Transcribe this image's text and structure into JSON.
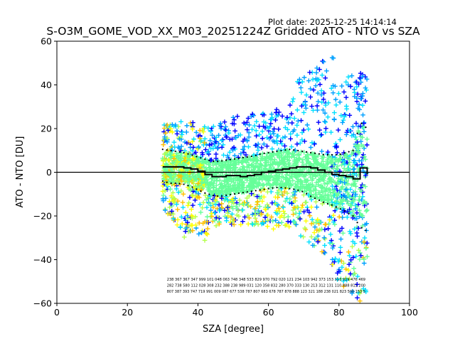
{
  "chart_data": {
    "type": "scatter",
    "title": "S-O3M_GOME_VOD_XX_M03_20251224Z Gridded ATO - NTO vs SZA",
    "plot_date_label": "Plot date: 2025-12-25 14:14:14",
    "xlabel": "SZA [degree]",
    "ylabel": "ATO - NTO [DU]",
    "xlim": [
      0,
      100
    ],
    "ylim": [
      -60,
      60
    ],
    "x_ticks": [
      0,
      20,
      40,
      60,
      80,
      100
    ],
    "y_ticks": [
      -60,
      -40,
      -20,
      0,
      20,
      40,
      60
    ],
    "zero_line": 0,
    "sza_range": [
      30,
      88
    ],
    "marker": "+",
    "colormap": [
      "#0000ff",
      "#00a0ff",
      "#00e0ff",
      "#66ff99",
      "#b4ff4c",
      "#ffff00",
      "#ffc000"
    ],
    "bin_centers": [
      30,
      32,
      34,
      36,
      38,
      40,
      42,
      44,
      46,
      48,
      50,
      52,
      54,
      56,
      58,
      60,
      62,
      64,
      66,
      68,
      70,
      72,
      74,
      76,
      78,
      80,
      82,
      84,
      86,
      88
    ],
    "median_line": [
      2.5,
      2.5,
      2.5,
      2,
      1.5,
      0.5,
      -1,
      -2,
      -2,
      -1.5,
      -1.5,
      -2,
      -1.5,
      -1,
      0,
      0.5,
      1,
      1.5,
      2,
      2.5,
      2.5,
      2,
      1,
      0,
      -1,
      -1.5,
      -2,
      -3,
      2,
      -1
    ],
    "upper_sd_line": [
      10.5,
      10,
      9.5,
      9,
      8,
      7,
      6,
      5,
      5,
      5.5,
      6,
      6.5,
      7,
      7.5,
      8.5,
      9,
      9.5,
      10,
      10.5,
      10,
      9.5,
      9,
      8.5,
      8,
      8,
      8,
      9,
      10,
      23,
      20
    ],
    "lower_sd_line": [
      -4,
      -5,
      -5,
      -5.5,
      -6.5,
      -8,
      -9.5,
      -10.5,
      -11,
      -10.5,
      -10,
      -9.5,
      -9,
      -8.5,
      -8,
      -7.5,
      -7,
      -7,
      -7.5,
      -8,
      -9,
      -11,
      -12.5,
      -14,
      -15,
      -16.5,
      -18,
      -20,
      -25,
      -27
    ],
    "upper_envelope": [
      22,
      22,
      24,
      24,
      24,
      22,
      21,
      21,
      22,
      25,
      26,
      26,
      27,
      27,
      28,
      28,
      29,
      30,
      40,
      42,
      46,
      48,
      50,
      52,
      54,
      54,
      50,
      45,
      46,
      46
    ],
    "lower_envelope": [
      -18,
      -20,
      -24,
      -30,
      -28,
      -28,
      -32,
      -26,
      -24,
      -24,
      -24,
      -24,
      -25,
      -24,
      -24,
      -26,
      -26,
      -24,
      -26,
      -28,
      -32,
      -34,
      -36,
      -38,
      -42,
      -52,
      -55,
      -58,
      -60,
      -55
    ],
    "count_labels": [
      "238 367 367 347 999 101 048 063 748 348 533 829 970 792 020 121 234 103 942 373 153 313 919 476 469",
      "282 738 580 112 028 308 232 388 238 989 031 120 358 832 280 370 333 130 213 312 131 110 888 813 200",
      "807 387 393 747 719 991 009 087 677 538 787 807 683 678 787 878 888 123 321 188 238 021 823 500 153 5"
    ]
  }
}
